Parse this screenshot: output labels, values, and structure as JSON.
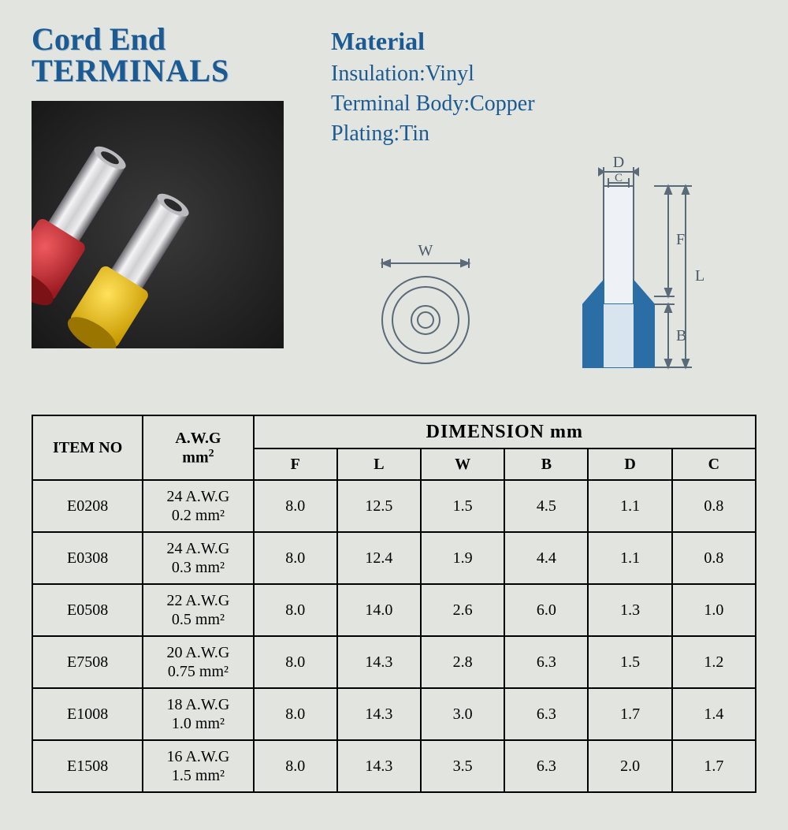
{
  "title": {
    "line1": "Cord End",
    "line2": "TERMINALS"
  },
  "material": {
    "heading": "Material",
    "insulation_label": "Insulation:",
    "insulation_value": "Vinyl",
    "body_label": "Terminal Body:",
    "body_value": "Copper",
    "plating_label": "Plating:",
    "plating_value": "Tin"
  },
  "photo": {
    "terminal1_cap_color": "#c8232b",
    "terminal2_cap_color": "#f0c311",
    "barrel_light": "#e8e8ea",
    "barrel_dark": "#8a8a90",
    "background": "#222222"
  },
  "diagram": {
    "labels": {
      "W": "W",
      "D": "D",
      "C": "C",
      "F": "F",
      "L": "L",
      "B": "B"
    },
    "stroke": "#5b6a78",
    "fill_blue": "#2a6ea5",
    "fill_light": "#d0dce6"
  },
  "table": {
    "headers": {
      "item": "ITEM NO",
      "awg_l1": "A.W.G",
      "awg_l2": "mm",
      "dimension": "DIMENSION mm",
      "cols": [
        "F",
        "L",
        "W",
        "B",
        "D",
        "C"
      ]
    },
    "rows": [
      {
        "item": "E0208",
        "awg_l1": "24 A.W.G",
        "awg_l2": "0.2 mm²",
        "F": "8.0",
        "L": "12.5",
        "W": "1.5",
        "B": "4.5",
        "D": "1.1",
        "C": "0.8"
      },
      {
        "item": "E0308",
        "awg_l1": "24 A.W.G",
        "awg_l2": "0.3 mm²",
        "F": "8.0",
        "L": "12.4",
        "W": "1.9",
        "B": "4.4",
        "D": "1.1",
        "C": "0.8"
      },
      {
        "item": "E0508",
        "awg_l1": "22 A.W.G",
        "awg_l2": "0.5 mm²",
        "F": "8.0",
        "L": "14.0",
        "W": "2.6",
        "B": "6.0",
        "D": "1.3",
        "C": "1.0"
      },
      {
        "item": "E7508",
        "awg_l1": "20 A.W.G",
        "awg_l2": "0.75 mm²",
        "F": "8.0",
        "L": "14.3",
        "W": "2.8",
        "B": "6.3",
        "D": "1.5",
        "C": "1.2"
      },
      {
        "item": "E1008",
        "awg_l1": "18 A.W.G",
        "awg_l2": "1.0 mm²",
        "F": "8.0",
        "L": "14.3",
        "W": "3.0",
        "B": "6.3",
        "D": "1.7",
        "C": "1.4"
      },
      {
        "item": "E1508",
        "awg_l1": "16 A.W.G",
        "awg_l2": "1.5 mm²",
        "F": "8.0",
        "L": "14.3",
        "W": "3.5",
        "B": "6.3",
        "D": "2.0",
        "C": "1.7"
      }
    ]
  }
}
